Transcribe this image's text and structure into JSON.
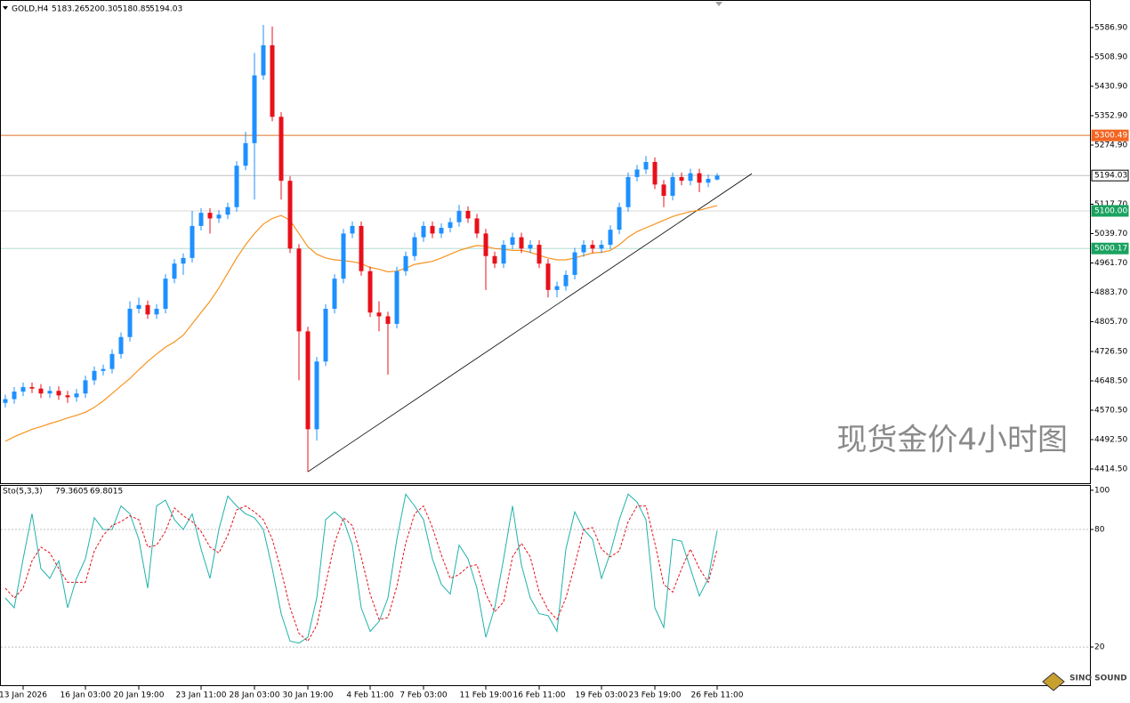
{
  "chart_data": {
    "type": "candlestick",
    "title": "GOLD,H4",
    "quote_labels": [
      "5183.26",
      "5200.30",
      "5180.85",
      "5194.03"
    ],
    "watermark": "现货金价4小时图",
    "logo": "SINO SOUND",
    "up_color": "#1e90ff",
    "down_color": "#e8101a",
    "categories": [
      null,
      null,
      "13 Jan 2026",
      null,
      null,
      null,
      null,
      null,
      null,
      "16 Jan 03:00",
      null,
      null,
      null,
      null,
      null,
      "20 Jan 19:00",
      null,
      null,
      null,
      null,
      null,
      null,
      "23 Jan 11:00",
      null,
      null,
      null,
      null,
      null,
      "28 Jan 03:00",
      null,
      null,
      null,
      null,
      null,
      "30 Jan 19:00",
      null,
      null,
      null,
      null,
      null,
      null,
      "4 Feb 11:00",
      null,
      null,
      null,
      null,
      null,
      "7 Feb 03:00",
      null,
      null,
      null,
      null,
      null,
      null,
      "11 Feb 19:00",
      null,
      null,
      null,
      null,
      null,
      "16 Feb 11:00",
      null,
      null,
      null,
      null,
      null,
      null,
      "19 Feb 03:00",
      null,
      null,
      null,
      null,
      null,
      "23 Feb 19:00",
      null,
      null,
      null,
      null,
      null,
      null,
      "26 Feb 11:00"
    ],
    "open": [
      4590,
      4600,
      4620,
      4632,
      4628,
      4615,
      4622,
      4610,
      4605,
      4615,
      4650,
      4675,
      4680,
      4720,
      4765,
      4840,
      4850,
      4825,
      4840,
      4920,
      4960,
      4975,
      5060,
      5095,
      5080,
      5090,
      5110,
      5220,
      5280,
      5460,
      5540,
      5350,
      5180,
      5000,
      4780,
      4520,
      4700,
      4840,
      4920,
      5040,
      5060,
      4940,
      4830,
      4820,
      4800,
      4940,
      4980,
      5030,
      5060,
      5040,
      5055,
      5070,
      5100,
      5080,
      5040,
      4980,
      4960,
      5010,
      5030,
      5000,
      5010,
      4960,
      4890,
      4900,
      4930,
      4990,
      5010,
      5000,
      5010,
      5050,
      5110,
      5190,
      5210,
      5230,
      5170,
      5140,
      5190,
      5180,
      5200,
      5175,
      5183.26
    ],
    "high": [
      4612,
      4632,
      4644,
      4644,
      4640,
      4634,
      4634,
      4622,
      4627,
      4662,
      4687,
      4692,
      4732,
      4777,
      4860,
      4870,
      4862,
      4852,
      4932,
      4972,
      4987,
      5100,
      5107,
      5107,
      5102,
      5122,
      5232,
      5310,
      5520,
      5594,
      5590,
      5362,
      5192,
      5012,
      4792,
      4712,
      4852,
      4932,
      5052,
      5072,
      5072,
      4952,
      4860,
      4832,
      4952,
      4992,
      5042,
      5072,
      5072,
      5067,
      5082,
      5116,
      5112,
      5092,
      5052,
      4992,
      5022,
      5042,
      5042,
      5022,
      5022,
      4972,
      4912,
      4942,
      5002,
      5022,
      5022,
      5022,
      5062,
      5122,
      5202,
      5222,
      5246,
      5242,
      5182,
      5202,
      5202,
      5212,
      5212,
      5197,
      5200.3
    ],
    "low": [
      4578,
      4588,
      4608,
      4616,
      4603,
      4603,
      4598,
      4590,
      4593,
      4603,
      4638,
      4663,
      4668,
      4708,
      4753,
      4828,
      4813,
      4813,
      4828,
      4908,
      4930,
      4963,
      5048,
      5040,
      5068,
      5078,
      5098,
      5208,
      5130,
      5448,
      5338,
      5130,
      4988,
      4650,
      4407,
      4490,
      4688,
      4828,
      4908,
      5028,
      4928,
      4818,
      4780,
      4665,
      4788,
      4928,
      4968,
      5018,
      5028,
      5028,
      5043,
      5058,
      5068,
      5028,
      4890,
      4948,
      4948,
      4998,
      4988,
      4988,
      4948,
      4870,
      4870,
      4888,
      4918,
      4978,
      4988,
      4988,
      4998,
      5038,
      5098,
      5178,
      5198,
      5158,
      5110,
      5128,
      5168,
      5168,
      5150,
      5163,
      5180.85
    ],
    "close": [
      4600,
      4620,
      4632,
      4628,
      4615,
      4622,
      4610,
      4605,
      4615,
      4650,
      4675,
      4680,
      4720,
      4765,
      4840,
      4850,
      4825,
      4840,
      4920,
      4960,
      4975,
      5060,
      5095,
      5080,
      5090,
      5110,
      5220,
      5280,
      5460,
      5540,
      5350,
      5180,
      5000,
      4780,
      4520,
      4700,
      4840,
      4920,
      5040,
      5060,
      4940,
      4830,
      4820,
      4800,
      4940,
      4980,
      5030,
      5060,
      5040,
      5055,
      5070,
      5100,
      5080,
      5040,
      4980,
      4960,
      5010,
      5030,
      5000,
      5010,
      4960,
      4890,
      4900,
      4930,
      4990,
      5010,
      5000,
      5010,
      5050,
      5110,
      5190,
      5210,
      5230,
      5170,
      5140,
      5190,
      5180,
      5200,
      5175,
      5185,
      5194.03
    ],
    "ma": {
      "color": "#f7931e",
      "values": [
        4488,
        4500,
        4510,
        4520,
        4527,
        4535,
        4542,
        4550,
        4557,
        4565,
        4578,
        4595,
        4615,
        4635,
        4655,
        4678,
        4700,
        4720,
        4738,
        4752,
        4770,
        4800,
        4830,
        4860,
        4895,
        4935,
        4975,
        5010,
        5040,
        5065,
        5080,
        5088,
        5075,
        5040,
        5005,
        4985,
        4975,
        4970,
        4968,
        4965,
        4960,
        4950,
        4945,
        4938,
        4940,
        4948,
        4958,
        4962,
        4966,
        4975,
        4985,
        4995,
        5002,
        5008,
        5006,
        5000,
        4998,
        4995,
        4995,
        4990,
        4982,
        4975,
        4970,
        4970,
        4975,
        4982,
        4988,
        4990,
        4995,
        5010,
        5030,
        5045,
        5055,
        5065,
        5075,
        5085,
        5092,
        5098,
        5102,
        5108,
        5114
      ]
    },
    "trendline": {
      "color": "#000000",
      "from": [
        34,
        4407
      ],
      "to": [
        83.9,
        5199
      ]
    },
    "levels": [
      {
        "value": 5300.49,
        "color": "#e0702a",
        "box_color": "#f26522",
        "text_color": "#ffffff"
      },
      {
        "value": 5194.03,
        "color": "#c0c0c0",
        "box_color": "#ffffff",
        "text_color": "#000000"
      },
      {
        "value": 5100,
        "label": "5100.00",
        "color": "#d8d8d8",
        "box_color": "#1aa260",
        "text_color": "#ffffff"
      },
      {
        "value": 5000.17,
        "color": "#b0ddd5",
        "box_color": "#1aa260",
        "text_color": "#ffffff"
      }
    ],
    "ylim": [
      4376.7,
      5660.2
    ],
    "yticks": [
      {
        "value": 5586.9,
        "label": "5586.90"
      },
      {
        "value": 5508.9,
        "label": "5508.90"
      },
      {
        "value": 5430.9,
        "label": "5430.90"
      },
      {
        "value": 5352.9,
        "label": "5352.90"
      },
      {
        "value": 5274.9,
        "label": "5274.90"
      },
      {
        "value": 5117.7,
        "label": "5117.70"
      },
      {
        "value": 5039.7,
        "label": "5039.70"
      },
      {
        "value": 4961.7,
        "label": "4961.70"
      },
      {
        "value": 4883.7,
        "label": "4883.70"
      },
      {
        "value": 4805.7,
        "label": "4805.70"
      },
      {
        "value": 4726.5,
        "label": "4726.50"
      },
      {
        "value": 4648.5,
        "label": "4648.50"
      },
      {
        "value": 4570.5,
        "label": "4570.50"
      },
      {
        "value": 4492.5,
        "label": "4492.50"
      },
      {
        "value": 4414.5,
        "label": "4414.50"
      }
    ],
    "stochastic": {
      "name": "Sto(5,3,3)",
      "main_color": "#20b2aa",
      "signal_color": "#e8101a",
      "ylim": [
        0.5,
        102.7
      ],
      "yticks": [
        100,
        80,
        20
      ],
      "levels": [
        80,
        20
      ],
      "main": [
        45,
        40,
        65,
        88,
        60,
        55,
        64,
        40,
        55,
        65,
        86,
        80,
        80,
        92,
        88,
        75,
        50,
        92,
        95,
        85,
        80,
        88,
        70,
        55,
        80,
        97,
        92,
        88,
        86,
        80,
        60,
        37,
        23,
        22,
        25,
        45,
        85,
        89,
        85,
        72,
        40,
        28,
        33,
        45,
        75,
        98,
        92,
        85,
        65,
        52,
        47,
        72,
        65,
        50,
        25,
        40,
        65,
        92,
        62,
        45,
        37,
        36,
        28,
        70,
        89,
        80,
        75,
        55,
        68,
        85,
        98,
        94,
        85,
        40,
        30,
        75,
        74,
        60,
        46,
        55,
        79.3605
      ],
      "signal": [
        50,
        45,
        50,
        64,
        71,
        68,
        60,
        53,
        53,
        53,
        69,
        77,
        82,
        84,
        87,
        85,
        71,
        72,
        79,
        91,
        87,
        84,
        79,
        71,
        68,
        77,
        90,
        92,
        89,
        85,
        75,
        59,
        40,
        27,
        23,
        31,
        52,
        73,
        86,
        82,
        66,
        47,
        34,
        35,
        51,
        73,
        88,
        92,
        81,
        67,
        55,
        57,
        61,
        62,
        47,
        38,
        43,
        66,
        73,
        66,
        48,
        39,
        34,
        45,
        62,
        80,
        81,
        70,
        66,
        69,
        84,
        92,
        92,
        73,
        52,
        48,
        60,
        70,
        60,
        53,
        69.8015
      ]
    }
  }
}
